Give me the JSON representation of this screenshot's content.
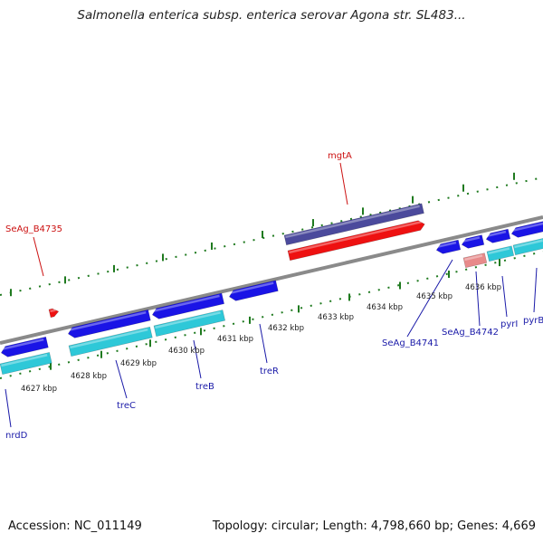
{
  "title": "Salmonella enterica subsp. enterica serovar Agona str. SL483...",
  "accession": "Accession: NC_011149",
  "summary": "Topology: circular; Length: 4,798,660 bp; Genes: 4,669",
  "colors": {
    "backbone": "#8a8a8a",
    "tick": "#1f7a1f",
    "gene_forward": "#1a14e6",
    "gene_reverse_cyan": "#2ec8d8",
    "gene_red": "#ee1111",
    "gene_purple": "#4b4a9c",
    "gene_pink": "#e88a8a",
    "label_blue": "#1a1aa8",
    "label_red": "#cc1111"
  },
  "kbp_labels": [
    "4627 kbp",
    "4628 kbp",
    "4629 kbp",
    "4630 kbp",
    "4631 kbp",
    "4632 kbp",
    "4633 kbp",
    "4634 kbp",
    "4635 kbp",
    "4636 kbp"
  ],
  "gene_labels": [
    {
      "text": "mgtA",
      "color": "red"
    },
    {
      "text": "SeAg_B4735",
      "color": "red"
    },
    {
      "text": "nrdD",
      "color": "blue"
    },
    {
      "text": "treC",
      "color": "blue"
    },
    {
      "text": "treB",
      "color": "blue"
    },
    {
      "text": "treR",
      "color": "blue"
    },
    {
      "text": "SeAg_B4741",
      "color": "blue"
    },
    {
      "text": "SeAg_B4742",
      "color": "blue"
    },
    {
      "text": "pyrI",
      "color": "blue"
    },
    {
      "text": "pyrB",
      "color": "blue"
    }
  ]
}
